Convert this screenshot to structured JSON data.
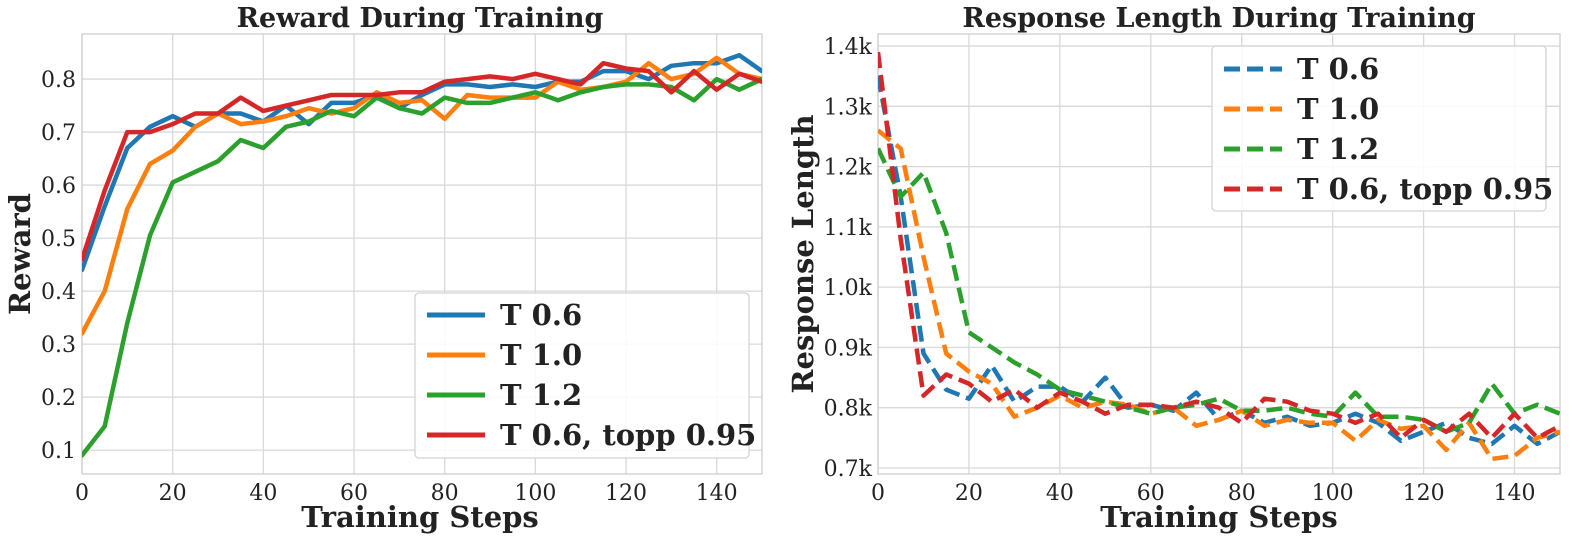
{
  "chart_data": [
    {
      "type": "line",
      "title": "Reward During Training",
      "xlabel": "Training Steps",
      "ylabel": "Reward",
      "xlim": [
        0,
        150
      ],
      "ylim": [
        0.055,
        0.885
      ],
      "xticks": [
        "0",
        "20",
        "40",
        "60",
        "80",
        "100",
        "120",
        "140"
      ],
      "yticks": [
        "0.1",
        "0.2",
        "0.3",
        "0.4",
        "0.5",
        "0.6",
        "0.7",
        "0.8"
      ],
      "grid": true,
      "legend_position": "lower-right",
      "line_style": "solid",
      "x": [
        0,
        5,
        10,
        15,
        20,
        25,
        30,
        35,
        40,
        45,
        50,
        55,
        60,
        65,
        70,
        75,
        80,
        85,
        90,
        95,
        100,
        105,
        110,
        115,
        120,
        125,
        130,
        135,
        140,
        145,
        150
      ],
      "series": [
        {
          "name": "T 0.6",
          "color": "#1f77b4",
          "values": [
            0.44,
            0.56,
            0.67,
            0.71,
            0.73,
            0.71,
            0.735,
            0.735,
            0.72,
            0.75,
            0.715,
            0.755,
            0.755,
            0.77,
            0.745,
            0.77,
            0.79,
            0.79,
            0.785,
            0.79,
            0.785,
            0.795,
            0.795,
            0.815,
            0.815,
            0.8,
            0.825,
            0.83,
            0.83,
            0.845,
            0.815
          ]
        },
        {
          "name": "T 1.0",
          "color": "#ff7f0e",
          "values": [
            0.32,
            0.4,
            0.555,
            0.64,
            0.665,
            0.71,
            0.735,
            0.715,
            0.72,
            0.73,
            0.745,
            0.735,
            0.745,
            0.775,
            0.755,
            0.76,
            0.725,
            0.77,
            0.765,
            0.765,
            0.765,
            0.795,
            0.78,
            0.785,
            0.795,
            0.83,
            0.8,
            0.81,
            0.84,
            0.81,
            0.8
          ]
        },
        {
          "name": "T 1.2",
          "color": "#2ca02c",
          "values": [
            0.09,
            0.145,
            0.34,
            0.505,
            0.605,
            0.625,
            0.645,
            0.685,
            0.67,
            0.71,
            0.72,
            0.74,
            0.73,
            0.765,
            0.745,
            0.735,
            0.765,
            0.755,
            0.755,
            0.765,
            0.775,
            0.76,
            0.775,
            0.785,
            0.79,
            0.79,
            0.785,
            0.76,
            0.8,
            0.78,
            0.8
          ]
        },
        {
          "name": "T 0.6, topp 0.95",
          "color": "#d62728",
          "values": [
            0.46,
            0.59,
            0.7,
            0.7,
            0.715,
            0.735,
            0.735,
            0.765,
            0.74,
            0.75,
            0.76,
            0.77,
            0.77,
            0.77,
            0.775,
            0.775,
            0.795,
            0.8,
            0.805,
            0.8,
            0.81,
            0.8,
            0.79,
            0.83,
            0.82,
            0.815,
            0.775,
            0.815,
            0.78,
            0.81,
            0.795
          ]
        }
      ]
    },
    {
      "type": "line",
      "title": "Response Length During Training",
      "xlabel": "Training Steps",
      "ylabel": "Response Length",
      "xlim": [
        0,
        150
      ],
      "ylim": [
        690,
        1420
      ],
      "xticks": [
        "0",
        "20",
        "40",
        "60",
        "80",
        "100",
        "120",
        "140"
      ],
      "yticks": [
        "0.7k",
        "0.8k",
        "0.9k",
        "1.0k",
        "1.1k",
        "1.2k",
        "1.3k",
        "1.4k"
      ],
      "grid": true,
      "legend_position": "upper-right",
      "line_style": "dashed",
      "x": [
        0,
        5,
        10,
        15,
        20,
        25,
        30,
        35,
        40,
        45,
        50,
        55,
        60,
        65,
        70,
        75,
        80,
        85,
        90,
        95,
        100,
        105,
        110,
        115,
        120,
        125,
        130,
        135,
        140,
        145,
        150
      ],
      "series": [
        {
          "name": "T 0.6",
          "color": "#1f77b4",
          "values": [
            1350,
            1150,
            890,
            830,
            815,
            870,
            810,
            835,
            835,
            810,
            850,
            800,
            805,
            795,
            825,
            780,
            795,
            775,
            785,
            770,
            775,
            790,
            775,
            745,
            760,
            775,
            750,
            740,
            770,
            740,
            760
          ]
        },
        {
          "name": "T 1.0",
          "color": "#ff7f0e",
          "values": [
            1260,
            1230,
            1050,
            890,
            860,
            840,
            785,
            800,
            820,
            800,
            810,
            805,
            790,
            800,
            770,
            780,
            795,
            770,
            780,
            775,
            775,
            745,
            780,
            765,
            770,
            730,
            775,
            715,
            720,
            750,
            760
          ]
        },
        {
          "name": "T 1.2",
          "color": "#2ca02c",
          "values": [
            1230,
            1150,
            1190,
            1090,
            925,
            900,
            875,
            855,
            830,
            820,
            810,
            800,
            790,
            800,
            805,
            815,
            795,
            795,
            800,
            790,
            785,
            825,
            785,
            785,
            780,
            760,
            775,
            840,
            790,
            805,
            790
          ]
        },
        {
          "name": "T 0.6, topp 0.95",
          "color": "#d62728",
          "values": [
            1390,
            1080,
            820,
            855,
            840,
            810,
            830,
            800,
            825,
            810,
            790,
            805,
            805,
            800,
            810,
            800,
            775,
            815,
            810,
            795,
            790,
            775,
            790,
            750,
            780,
            760,
            790,
            750,
            790,
            750,
            770
          ]
        }
      ]
    }
  ]
}
